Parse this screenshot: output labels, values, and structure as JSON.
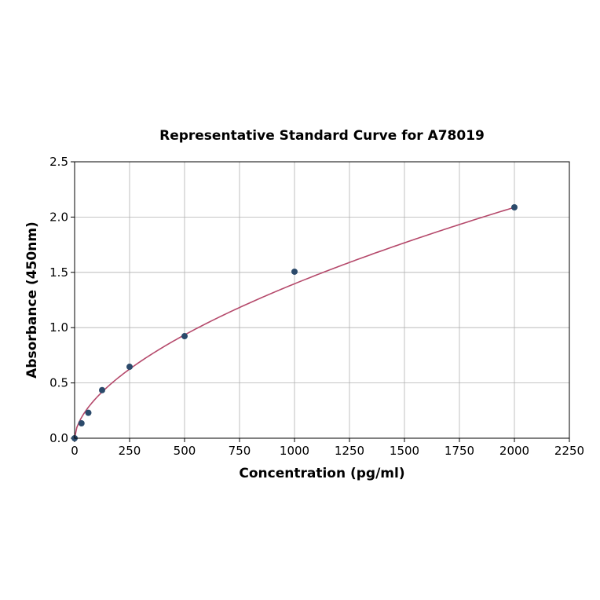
{
  "chart_data": {
    "type": "scatter",
    "title": "Representative Standard Curve for A78019",
    "xlabel": "Concentration (pg/ml)",
    "ylabel": "Absorbance (450nm)",
    "xlim": [
      0,
      2250
    ],
    "ylim": [
      0,
      2.5
    ],
    "xticks": [
      "0",
      "250",
      "500",
      "750",
      "1000",
      "1250",
      "1500",
      "1750",
      "2000",
      "2250"
    ],
    "yticks": [
      "0.0",
      "0.5",
      "1.0",
      "1.5",
      "2.0",
      "2.5"
    ],
    "grid": true,
    "points": [
      {
        "x": 0,
        "y": 0.0
      },
      {
        "x": 31.25,
        "y": 0.135
      },
      {
        "x": 62.5,
        "y": 0.23
      },
      {
        "x": 125,
        "y": 0.435
      },
      {
        "x": 250,
        "y": 0.646
      },
      {
        "x": 500,
        "y": 0.923
      },
      {
        "x": 1000,
        "y": 1.506
      },
      {
        "x": 2000,
        "y": 2.088
      }
    ],
    "fit": {
      "type": "curve",
      "color": "#b5496b"
    },
    "point_color": "#2b4a6b"
  }
}
